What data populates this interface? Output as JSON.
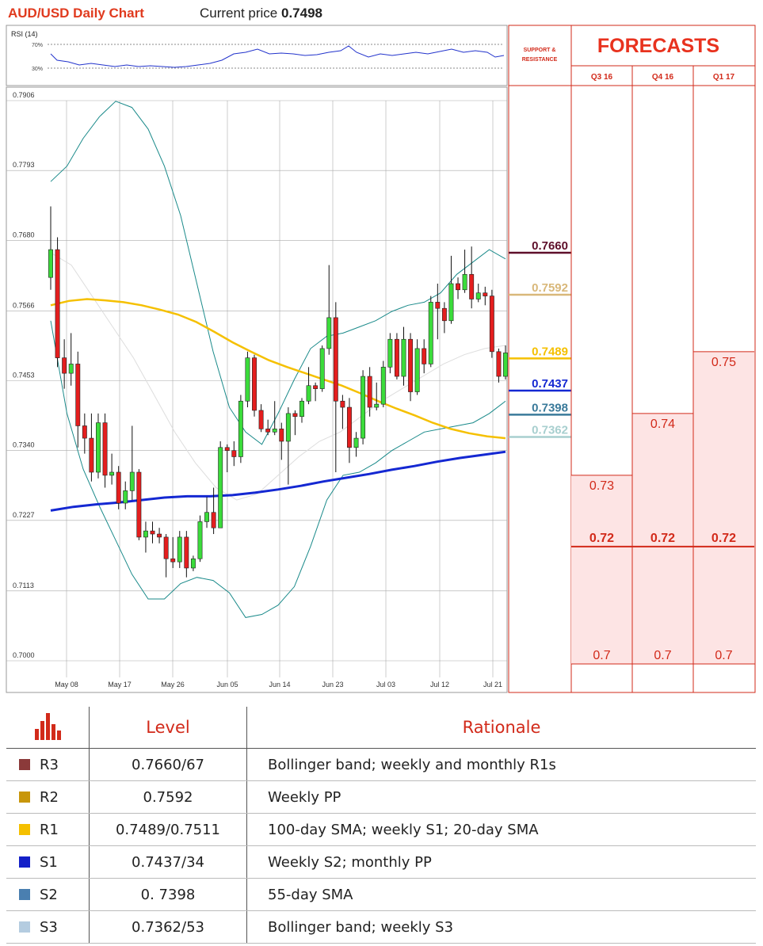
{
  "header": {
    "title": "AUD/USD Daily Chart",
    "price_label": "Current price ",
    "price_value": "0.7498"
  },
  "rsi": {
    "label": "RSI (14)",
    "level_high": "70%",
    "level_low": "30%"
  },
  "colors": {
    "bull_candle": "#3bdc3b",
    "bear_candle": "#e41e1e",
    "sma_100": "#f5c000",
    "sma_200": "#1428d2",
    "bollinger": "#1a8a8a",
    "sma_20": "#dddddd",
    "accent_red": "#d22a1a"
  },
  "chart_data": {
    "type": "candlestick",
    "ylim": [
      0.7,
      0.7906
    ],
    "y_ticks": [
      "0.7906",
      "0.7793",
      "0.7680",
      "0.7566",
      "0.7453",
      "0.7340",
      "0.7227",
      "0.7113",
      "0.7000"
    ],
    "x_ticks": [
      "May 08",
      "May 17",
      "May 26",
      "Jun 05",
      "Jun 14",
      "Jun 23",
      "Jul 03",
      "Jul 12",
      "Jul 21"
    ],
    "candles": [
      [
        0.762,
        0.7665,
        0.7735,
        0.76
      ],
      [
        0.7665,
        0.749,
        0.7685,
        0.7475
      ],
      [
        0.749,
        0.7465,
        0.752,
        0.744
      ],
      [
        0.7465,
        0.748,
        0.753,
        0.7445
      ],
      [
        0.748,
        0.738,
        0.75,
        0.7345
      ],
      [
        0.738,
        0.736,
        0.74,
        0.7335
      ],
      [
        0.736,
        0.7305,
        0.74,
        0.729
      ],
      [
        0.7305,
        0.7385,
        0.74,
        0.7295
      ],
      [
        0.7385,
        0.73,
        0.74,
        0.728
      ],
      [
        0.73,
        0.7305,
        0.7335,
        0.7285
      ],
      [
        0.7305,
        0.7255,
        0.7315,
        0.7245
      ],
      [
        0.7255,
        0.7275,
        0.729,
        0.7245
      ],
      [
        0.7275,
        0.7305,
        0.738,
        0.726
      ],
      [
        0.7305,
        0.72,
        0.731,
        0.7195
      ],
      [
        0.72,
        0.721,
        0.7225,
        0.7175
      ],
      [
        0.721,
        0.7205,
        0.7225,
        0.719
      ],
      [
        0.7205,
        0.72,
        0.7215,
        0.719
      ],
      [
        0.72,
        0.7165,
        0.7205,
        0.7135
      ],
      [
        0.7165,
        0.716,
        0.72,
        0.715
      ],
      [
        0.716,
        0.72,
        0.721,
        0.715
      ],
      [
        0.72,
        0.715,
        0.721,
        0.7135
      ],
      [
        0.715,
        0.7165,
        0.717,
        0.7145
      ],
      [
        0.7165,
        0.7225,
        0.7235,
        0.716
      ],
      [
        0.7225,
        0.724,
        0.7265,
        0.7215
      ],
      [
        0.724,
        0.7215,
        0.728,
        0.7205
      ],
      [
        0.7215,
        0.7345,
        0.7355,
        0.7215
      ],
      [
        0.7345,
        0.734,
        0.735,
        0.7305
      ],
      [
        0.734,
        0.733,
        0.7355,
        0.7315
      ],
      [
        0.733,
        0.742,
        0.743,
        0.732
      ],
      [
        0.742,
        0.749,
        0.75,
        0.741
      ],
      [
        0.749,
        0.7405,
        0.7495,
        0.7395
      ],
      [
        0.7405,
        0.7375,
        0.7415,
        0.737
      ],
      [
        0.7375,
        0.737,
        0.739,
        0.7365
      ],
      [
        0.737,
        0.7375,
        0.742,
        0.7365
      ],
      [
        0.7375,
        0.7355,
        0.7385,
        0.7325
      ],
      [
        0.7355,
        0.74,
        0.741,
        0.7285
      ],
      [
        0.74,
        0.7395,
        0.7405,
        0.7365
      ],
      [
        0.7395,
        0.742,
        0.7425,
        0.7385
      ],
      [
        0.742,
        0.7445,
        0.7475,
        0.7415
      ],
      [
        0.7445,
        0.744,
        0.745,
        0.742
      ],
      [
        0.744,
        0.7505,
        0.751,
        0.7435
      ],
      [
        0.7505,
        0.7555,
        0.764,
        0.7495
      ],
      [
        0.7555,
        0.742,
        0.758,
        0.7305
      ],
      [
        0.742,
        0.741,
        0.743,
        0.7375
      ],
      [
        0.741,
        0.7345,
        0.7425,
        0.732
      ],
      [
        0.7345,
        0.736,
        0.737,
        0.733
      ],
      [
        0.736,
        0.746,
        0.747,
        0.735
      ],
      [
        0.746,
        0.741,
        0.7475,
        0.7395
      ],
      [
        0.741,
        0.7415,
        0.745,
        0.7405
      ],
      [
        0.7415,
        0.7475,
        0.7485,
        0.741
      ],
      [
        0.7475,
        0.752,
        0.753,
        0.7465
      ],
      [
        0.752,
        0.746,
        0.753,
        0.7455
      ],
      [
        0.746,
        0.752,
        0.754,
        0.7445
      ],
      [
        0.752,
        0.7435,
        0.753,
        0.742
      ],
      [
        0.7435,
        0.7505,
        0.752,
        0.743
      ],
      [
        0.7505,
        0.748,
        0.752,
        0.7465
      ],
      [
        0.748,
        0.758,
        0.759,
        0.7475
      ],
      [
        0.758,
        0.757,
        0.761,
        0.752
      ],
      [
        0.757,
        0.755,
        0.758,
        0.753
      ],
      [
        0.755,
        0.761,
        0.7655,
        0.7545
      ],
      [
        0.761,
        0.76,
        0.762,
        0.7585
      ],
      [
        0.76,
        0.7625,
        0.7665,
        0.7595
      ],
      [
        0.7625,
        0.7585,
        0.767,
        0.757
      ],
      [
        0.7585,
        0.7595,
        0.761,
        0.758
      ],
      [
        0.7595,
        0.759,
        0.7605,
        0.7575
      ],
      [
        0.759,
        0.75,
        0.76,
        0.749
      ],
      [
        0.75,
        0.746,
        0.7505,
        0.745
      ],
      [
        0.746,
        0.7498,
        0.751,
        0.7455
      ]
    ],
    "sma_100": [
      0.7575,
      0.7582,
      0.7585,
      0.7583,
      0.758,
      0.7575,
      0.7568,
      0.756,
      0.7548,
      0.7532,
      0.7515,
      0.75,
      0.7486,
      0.7475,
      0.7465,
      0.7455,
      0.7445,
      0.7433,
      0.742,
      0.7408,
      0.7397,
      0.7385,
      0.7375,
      0.7368,
      0.7363,
      0.736
    ],
    "sma_200": [
      0.7243,
      0.7249,
      0.7253,
      0.7256,
      0.726,
      0.7264,
      0.7266,
      0.7266,
      0.7268,
      0.7272,
      0.7277,
      0.7283,
      0.729,
      0.7296,
      0.7302,
      0.7309,
      0.7315,
      0.7322,
      0.7328,
      0.7333,
      0.7338
    ],
    "bollinger_upper": [
      0.7775,
      0.78,
      0.7845,
      0.788,
      0.7905,
      0.7895,
      0.786,
      0.78,
      0.772,
      0.761,
      0.75,
      0.741,
      0.737,
      0.735,
      0.74,
      0.7455,
      0.7505,
      0.7525,
      0.753,
      0.754,
      0.755,
      0.7565,
      0.7575,
      0.758,
      0.7595,
      0.7625,
      0.7645,
      0.7665,
      0.765
    ],
    "bollinger_lower": [
      0.755,
      0.74,
      0.731,
      0.725,
      0.7195,
      0.714,
      0.71,
      0.71,
      0.7125,
      0.7135,
      0.713,
      0.711,
      0.707,
      0.7075,
      0.709,
      0.712,
      0.7185,
      0.726,
      0.73,
      0.7305,
      0.732,
      0.734,
      0.7355,
      0.737,
      0.7375,
      0.738,
      0.7385,
      0.74,
      0.742
    ],
    "sma_20": [
      0.766,
      0.764,
      0.759,
      0.754,
      0.749,
      0.743,
      0.737,
      0.732,
      0.728,
      0.726,
      0.727,
      0.73,
      0.733,
      0.7355,
      0.737,
      0.7395,
      0.742,
      0.744,
      0.746,
      0.748,
      0.7495,
      0.7505,
      0.751
    ]
  },
  "sr_panel": {
    "title_line1": "SUPPORT &",
    "title_line2": "RESISTANCE",
    "levels": [
      {
        "value": 0.766,
        "label": "0.7660",
        "color": "#5e0f2a"
      },
      {
        "value": 0.7592,
        "label": "0.7592",
        "color": "#d9b87a"
      },
      {
        "value": 0.7489,
        "label": "0.7489",
        "color": "#f5c000"
      },
      {
        "value": 0.7437,
        "label": "0.7437",
        "color": "#1428d2"
      },
      {
        "value": 0.7398,
        "label": "0.7398",
        "color": "#3a7a9a"
      },
      {
        "value": 0.7362,
        "label": "0.7362",
        "color": "#a8cfcf"
      }
    ]
  },
  "forecasts": {
    "title": "FORECASTS",
    "columns": [
      {
        "label": "Q3 16",
        "low": "0.7",
        "mid": "0.72",
        "high": "0.73",
        "high_value": 0.73
      },
      {
        "label": "Q4 16",
        "low": "0.7",
        "mid": "0.72",
        "high": "0.74",
        "high_value": 0.74
      },
      {
        "label": "Q1 17",
        "low": "0.7",
        "mid": "0.72",
        "high": "0.75",
        "high_value": 0.75
      }
    ]
  },
  "table": {
    "col_level": "Level",
    "col_rationale": "Rationale",
    "rows": [
      {
        "name": "R3",
        "level": "0.7660/67",
        "rationale": "Bollinger band; weekly and monthly R1s",
        "color": "#8b3a3a"
      },
      {
        "name": "R2",
        "level": "0.7592",
        "rationale": "Weekly PP",
        "color": "#c8960a"
      },
      {
        "name": "R1",
        "level": "0.7489/0.7511",
        "rationale": "100-day SMA; weekly S1; 20-day SMA",
        "color": "#f5c000"
      },
      {
        "name": "S1",
        "level": "0.7437/34",
        "rationale": "Weekly S2; monthly PP",
        "color": "#1420c8"
      },
      {
        "name": "S2",
        "level": "0. 7398",
        "rationale": "55-day SMA",
        "color": "#4a7fb0"
      },
      {
        "name": "S3",
        "level": "0.7362/53",
        "rationale": "Bollinger band; weekly S3",
        "color": "#b4cce0"
      }
    ]
  }
}
